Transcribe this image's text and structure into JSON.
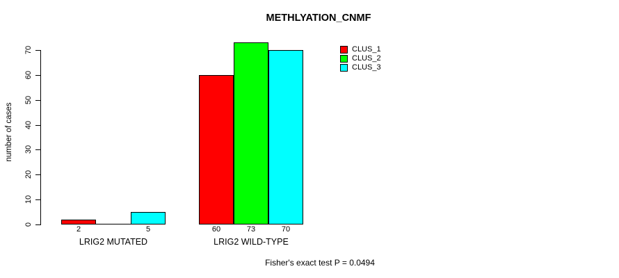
{
  "title": "METHLYATION_CNMF",
  "y_axis": {
    "label": "number of cases",
    "ticks": [
      0,
      10,
      20,
      30,
      40,
      50,
      60,
      70
    ]
  },
  "footer": "Fisher's exact test P = 0.0494",
  "legend": {
    "items": [
      {
        "label": "CLUS_1",
        "color": "#ff0000"
      },
      {
        "label": "CLUS_2",
        "color": "#00ff00"
      },
      {
        "label": "CLUS_3",
        "color": "#00ffff"
      }
    ]
  },
  "chart_data": {
    "type": "bar",
    "title": "METHLYATION_CNMF",
    "xlabel": "",
    "ylabel": "number of cases",
    "ylim": [
      0,
      70
    ],
    "y_ticks": [
      0,
      10,
      20,
      30,
      40,
      50,
      60,
      70
    ],
    "grid": false,
    "legend_position": "top-right-inside",
    "categories": [
      "LRIG2 MUTATED",
      "LRIG2 WILD-TYPE"
    ],
    "series": [
      {
        "name": "CLUS_1",
        "color": "#ff0000",
        "values": [
          2,
          60
        ]
      },
      {
        "name": "CLUS_2",
        "color": "#00ff00",
        "values": [
          0,
          73
        ]
      },
      {
        "name": "CLUS_3",
        "color": "#00ffff",
        "values": [
          5,
          70
        ]
      }
    ],
    "value_labels": [
      [
        "2",
        "",
        "5"
      ],
      [
        "60",
        "73",
        "70"
      ]
    ],
    "annotation": "Fisher's exact test P = 0.0494"
  }
}
